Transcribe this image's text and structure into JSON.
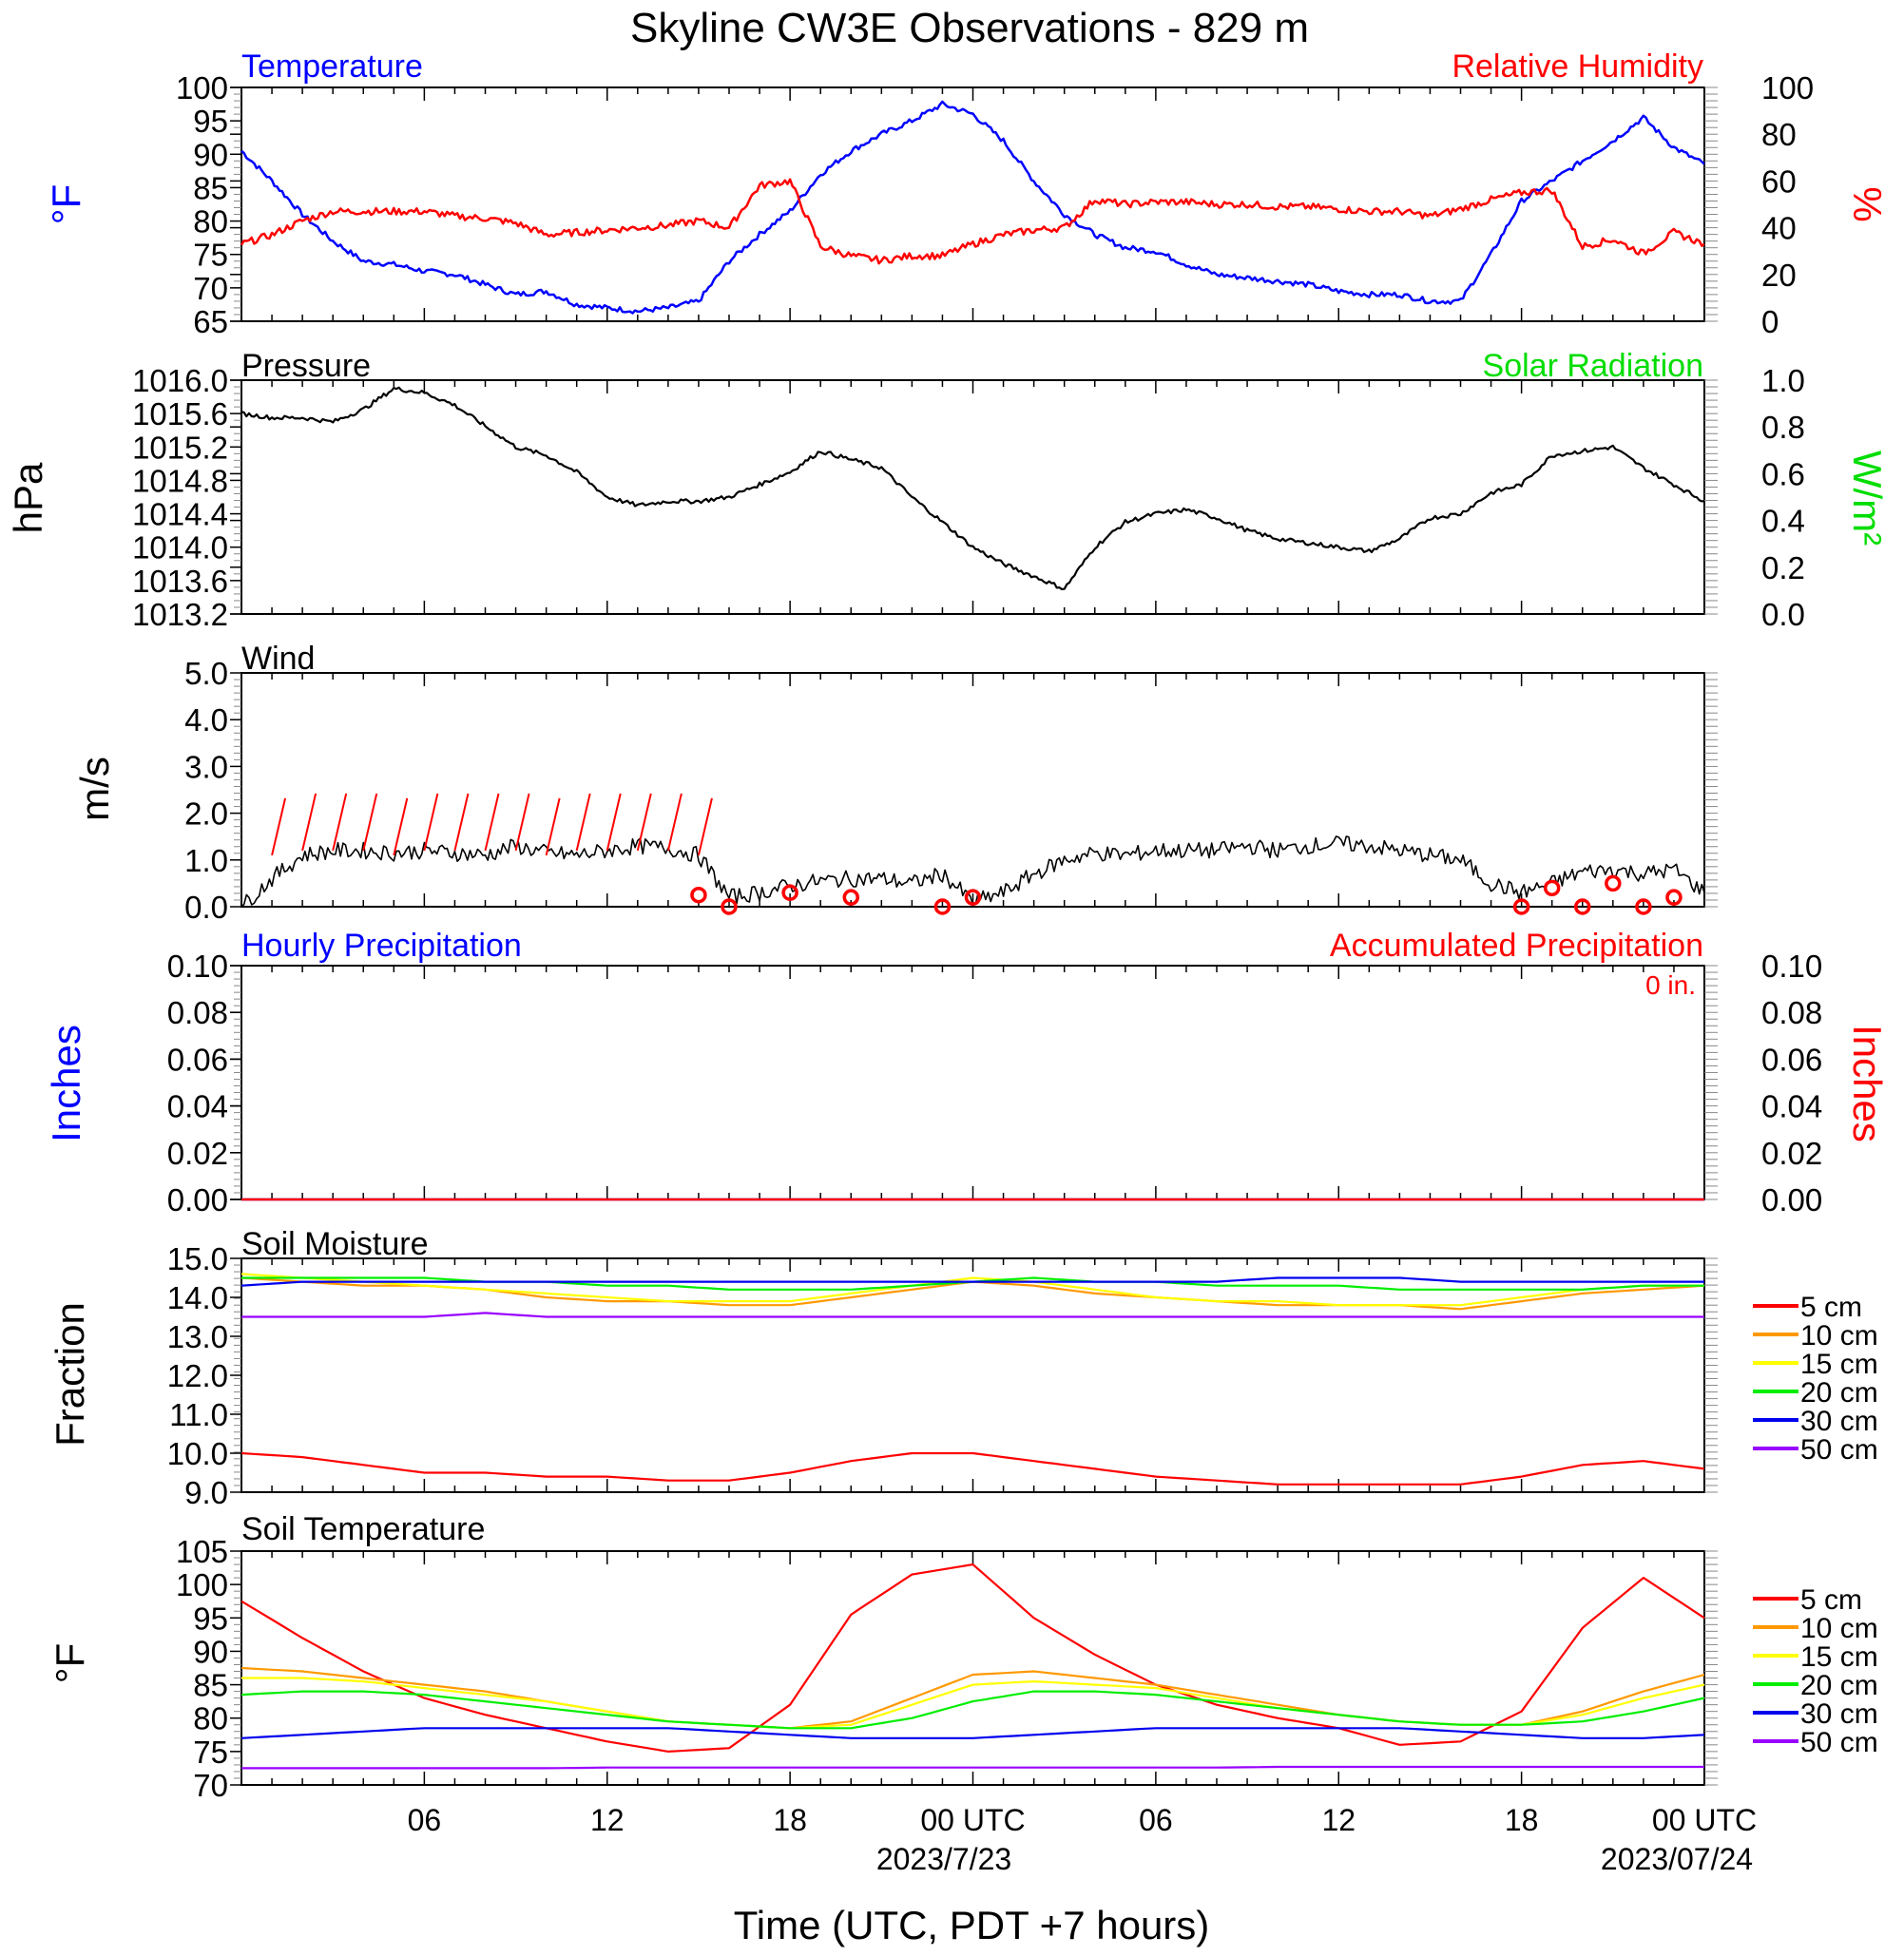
{
  "title": "Skyline CW3E Observations - 829 m",
  "xaxis": {
    "label": "Time (UTC, PDT +7 hours)",
    "tick_labels": [
      "06",
      "12",
      "18",
      "00 UTC",
      "06",
      "12",
      "18",
      "00 UTC"
    ],
    "date_labels": [
      "2023/7/23",
      "2023/07/24"
    ]
  },
  "panel_temp": {
    "left_title": "Temperature",
    "right_title": "Relative Humidity",
    "left_unit": "°F",
    "right_unit": "%",
    "left_ticks": [
      "100",
      "95",
      "90",
      "85",
      "80",
      "75",
      "70",
      "65"
    ],
    "right_ticks": [
      "100",
      "80",
      "60",
      "40",
      "20",
      "0"
    ]
  },
  "panel_pres": {
    "left_title": "Pressure",
    "right_title": "Solar Radiation",
    "left_unit": "hPa",
    "right_unit": "W/m²",
    "left_ticks": [
      "1016.0",
      "1015.6",
      "1015.2",
      "1014.8",
      "1014.4",
      "1014.0",
      "1013.6",
      "1013.2"
    ],
    "right_ticks": [
      "1.0",
      "0.8",
      "0.6",
      "0.4",
      "0.2",
      "0.0"
    ]
  },
  "panel_wind": {
    "left_title": "Wind",
    "left_unit": "m/s",
    "left_ticks": [
      "5.0",
      "4.0",
      "3.0",
      "2.0",
      "1.0",
      "0.0"
    ]
  },
  "panel_precip": {
    "left_title": "Hourly Precipitation",
    "right_title": "Accumulated Precipitation",
    "total_label": "0 in.",
    "left_unit": "Inches",
    "right_unit": "Inches",
    "left_ticks": [
      "0.10",
      "0.08",
      "0.06",
      "0.04",
      "0.02",
      "0.00"
    ],
    "right_ticks": [
      "0.10",
      "0.08",
      "0.06",
      "0.04",
      "0.02",
      "0.00"
    ]
  },
  "panel_soilm": {
    "left_title": "Soil Moisture",
    "left_unit": "Fraction",
    "left_ticks": [
      "15.0",
      "14.0",
      "13.0",
      "12.0",
      "11.0",
      "10.0",
      "9.0"
    ],
    "legend": [
      "5 cm",
      "10 cm",
      "15 cm",
      "20 cm",
      "30 cm",
      "50 cm"
    ]
  },
  "panel_soilt": {
    "left_title": "Soil Temperature",
    "left_unit": "°F",
    "left_ticks": [
      "105",
      "100",
      "95",
      "90",
      "85",
      "80",
      "75",
      "70"
    ],
    "legend": [
      "5 cm",
      "10 cm",
      "15 cm",
      "20 cm",
      "30 cm",
      "50 cm"
    ]
  },
  "colors": {
    "temperature": "#0000ff",
    "rh": "#ff0000",
    "pressure": "#000000",
    "solar": "#00dd00",
    "wind": "#000000",
    "barb": "#ff0000",
    "hourly_precip": "#0000ff",
    "accum_precip": "#ff0000",
    "5cm": "#ff0000",
    "10cm": "#ff9900",
    "15cm": "#ffff00",
    "20cm": "#00ee00",
    "30cm": "#0000ee",
    "50cm": "#9900ff"
  },
  "chart_data": [
    {
      "type": "line",
      "title": "Temperature",
      "xlabel": "Time (UTC, PDT +7 hours)",
      "ylabel": "°F",
      "ylim": [
        65,
        100
      ],
      "x_hours": [
        0,
        1,
        2,
        3,
        4,
        5,
        6,
        7,
        8,
        9,
        10,
        11,
        12,
        13,
        14,
        15,
        16,
        17,
        18,
        19,
        20,
        21,
        22,
        23,
        24,
        25,
        26,
        27,
        28,
        29,
        30,
        31,
        32,
        33,
        34,
        35,
        36,
        37,
        38,
        39,
        40,
        41,
        42,
        43,
        44,
        45,
        46,
        47,
        48
      ],
      "series": [
        {
          "name": "Temperature",
          "axis": "left",
          "values": [
            90.5,
            86,
            81,
            77,
            74,
            73.5,
            72.5,
            72,
            70.5,
            69,
            69.5,
            67.5,
            67,
            66.5,
            67,
            68,
            74,
            78,
            81.5,
            87,
            90.5,
            93,
            95,
            97.5,
            96,
            92,
            86,
            81,
            78,
            76,
            75.5,
            73.5,
            72,
            71.5,
            71,
            70.5,
            69.5,
            69,
            69,
            68,
            68,
            75,
            83,
            86,
            89,
            92,
            95.5,
            91,
            88.5
          ]
        }
      ]
    },
    {
      "type": "line",
      "title": "Relative Humidity",
      "ylabel": "%",
      "ylim": [
        0,
        100
      ],
      "x_hours": [
        0,
        1,
        2,
        3,
        4,
        5,
        6,
        7,
        8,
        9,
        10,
        11,
        12,
        13,
        14,
        15,
        16,
        17,
        18,
        19,
        20,
        21,
        22,
        23,
        24,
        25,
        26,
        27,
        28,
        29,
        30,
        31,
        32,
        33,
        34,
        35,
        36,
        37,
        38,
        39,
        40,
        41,
        42,
        43,
        44,
        45,
        46,
        47,
        48
      ],
      "series": [
        {
          "name": "Relative Humidity",
          "axis": "right",
          "values": [
            33,
            37,
            43,
            47,
            47,
            47,
            47,
            45,
            44,
            42,
            37,
            38,
            39,
            40,
            41,
            43,
            40,
            58,
            60,
            32,
            28,
            26,
            28,
            28,
            33,
            37,
            39,
            40,
            52,
            50,
            51,
            51,
            50,
            50,
            49,
            49,
            48,
            47,
            47,
            45,
            48,
            52,
            55,
            56,
            32,
            35,
            29,
            38,
            33
          ]
        }
      ]
    },
    {
      "type": "line",
      "title": "Pressure",
      "ylabel": "hPa",
      "ylim": [
        1013.2,
        1016.0
      ],
      "x_hours": [
        0,
        1,
        2,
        3,
        4,
        5,
        6,
        7,
        8,
        9,
        10,
        11,
        12,
        13,
        14,
        15,
        16,
        17,
        18,
        19,
        20,
        21,
        22,
        23,
        24,
        25,
        26,
        27,
        28,
        29,
        30,
        31,
        32,
        33,
        34,
        35,
        36,
        37,
        38,
        39,
        40,
        41,
        42,
        43,
        44,
        45,
        46,
        47,
        48
      ],
      "series": [
        {
          "name": "Pressure",
          "axis": "left",
          "values": [
            1015.6,
            1015.55,
            1015.55,
            1015.5,
            1015.65,
            1015.9,
            1015.85,
            1015.7,
            1015.45,
            1015.2,
            1015.1,
            1014.9,
            1014.6,
            1014.5,
            1014.55,
            1014.55,
            1014.6,
            1014.75,
            1014.9,
            1015.15,
            1015.05,
            1014.95,
            1014.6,
            1014.3,
            1014.0,
            1013.8,
            1013.65,
            1013.5,
            1014.0,
            1014.3,
            1014.4,
            1014.45,
            1014.35,
            1014.2,
            1014.1,
            1014.05,
            1014.0,
            1013.95,
            1014.1,
            1014.35,
            1014.4,
            1014.65,
            1014.75,
            1015.1,
            1015.15,
            1015.2,
            1014.95,
            1014.75,
            1014.55
          ]
        }
      ]
    },
    {
      "type": "line",
      "title": "Solar Radiation",
      "ylabel": "W/m²",
      "ylim": [
        0.0,
        1.0
      ],
      "series": []
    },
    {
      "type": "line",
      "title": "Wind",
      "ylabel": "m/s",
      "ylim": [
        0.0,
        5.0
      ],
      "x_hours": [
        0,
        1,
        2,
        3,
        4,
        5,
        6,
        7,
        8,
        9,
        10,
        11,
        12,
        13,
        14,
        15,
        16,
        17,
        18,
        19,
        20,
        21,
        22,
        23,
        24,
        25,
        26,
        27,
        28,
        29,
        30,
        31,
        32,
        33,
        34,
        35,
        36,
        37,
        38,
        39,
        40,
        41,
        42,
        43,
        44,
        45,
        46,
        47,
        48
      ],
      "series": [
        {
          "name": "Wind",
          "values": [
            0.0,
            0.6,
            1.1,
            1.2,
            1.2,
            1.15,
            1.2,
            1.15,
            1.1,
            1.3,
            1.15,
            1.1,
            1.2,
            1.3,
            1.25,
            1.1,
            0.2,
            0.3,
            0.45,
            0.55,
            0.6,
            0.6,
            0.5,
            0.7,
            0.1,
            0.3,
            0.7,
            1.0,
            1.15,
            1.1,
            1.2,
            1.2,
            1.2,
            1.3,
            1.2,
            1.3,
            1.35,
            1.3,
            1.2,
            1.1,
            1.0,
            0.5,
            0.3,
            0.5,
            0.75,
            0.8,
            0.7,
            0.8,
            0.3
          ]
        }
      ]
    },
    {
      "type": "line",
      "title": "Hourly Precipitation",
      "ylabel": "Inches",
      "ylim": [
        0.0,
        0.1
      ],
      "x_hours": [
        0,
        48
      ],
      "series": [
        {
          "name": "Hourly Precipitation",
          "values": [
            0.0,
            0.0
          ]
        },
        {
          "name": "Accumulated Precipitation",
          "values": [
            0.0,
            0.0
          ]
        }
      ]
    },
    {
      "type": "line",
      "title": "Soil Moisture",
      "ylabel": "Fraction",
      "ylim": [
        9.0,
        15.0
      ],
      "x_hours": [
        0,
        2,
        4,
        6,
        8,
        10,
        12,
        14,
        16,
        18,
        20,
        22,
        24,
        26,
        28,
        30,
        32,
        34,
        36,
        38,
        40,
        42,
        44,
        46,
        48
      ],
      "series": [
        {
          "name": "5 cm",
          "values": [
            10.0,
            9.9,
            9.7,
            9.5,
            9.5,
            9.4,
            9.4,
            9.3,
            9.3,
            9.5,
            9.8,
            10.0,
            10.0,
            9.8,
            9.6,
            9.4,
            9.3,
            9.2,
            9.2,
            9.2,
            9.2,
            9.4,
            9.7,
            9.8,
            9.6
          ]
        },
        {
          "name": "10 cm",
          "values": [
            14.5,
            14.4,
            14.3,
            14.3,
            14.2,
            14.0,
            13.9,
            13.9,
            13.8,
            13.8,
            14.0,
            14.2,
            14.4,
            14.3,
            14.1,
            14.0,
            13.9,
            13.8,
            13.8,
            13.8,
            13.7,
            13.9,
            14.1,
            14.2,
            14.3
          ]
        },
        {
          "name": "15 cm",
          "values": [
            14.6,
            14.5,
            14.4,
            14.3,
            14.2,
            14.1,
            14.0,
            13.9,
            13.9,
            13.9,
            14.1,
            14.3,
            14.5,
            14.4,
            14.2,
            14.0,
            13.9,
            13.9,
            13.8,
            13.8,
            13.8,
            14.0,
            14.2,
            14.3,
            14.3
          ]
        },
        {
          "name": "20 cm",
          "values": [
            14.5,
            14.5,
            14.5,
            14.5,
            14.4,
            14.4,
            14.3,
            14.3,
            14.2,
            14.2,
            14.2,
            14.3,
            14.4,
            14.5,
            14.4,
            14.4,
            14.3,
            14.3,
            14.3,
            14.2,
            14.2,
            14.2,
            14.2,
            14.3,
            14.3
          ]
        },
        {
          "name": "30 cm",
          "values": [
            14.3,
            14.4,
            14.4,
            14.4,
            14.4,
            14.4,
            14.4,
            14.4,
            14.4,
            14.4,
            14.4,
            14.4,
            14.4,
            14.4,
            14.4,
            14.4,
            14.4,
            14.5,
            14.5,
            14.5,
            14.4,
            14.4,
            14.4,
            14.4,
            14.4
          ]
        },
        {
          "name": "50 cm",
          "values": [
            13.5,
            13.5,
            13.5,
            13.5,
            13.6,
            13.5,
            13.5,
            13.5,
            13.5,
            13.5,
            13.5,
            13.5,
            13.5,
            13.5,
            13.5,
            13.5,
            13.5,
            13.5,
            13.5,
            13.5,
            13.5,
            13.5,
            13.5,
            13.5,
            13.5
          ]
        }
      ]
    },
    {
      "type": "line",
      "title": "Soil Temperature",
      "ylabel": "°F",
      "ylim": [
        70,
        105
      ],
      "x_hours": [
        0,
        2,
        4,
        6,
        8,
        10,
        12,
        14,
        16,
        18,
        20,
        22,
        24,
        26,
        28,
        30,
        32,
        34,
        36,
        38,
        40,
        42,
        44,
        46,
        48
      ],
      "series": [
        {
          "name": "5 cm",
          "values": [
            97.5,
            92,
            87,
            83,
            80.5,
            78.5,
            76.5,
            75,
            75.5,
            82,
            95.5,
            101.5,
            103,
            95,
            89.5,
            85,
            82,
            80,
            78.5,
            76,
            76.5,
            81,
            93.5,
            101,
            95
          ]
        },
        {
          "name": "10 cm",
          "values": [
            87.5,
            87,
            86,
            85,
            84,
            82.5,
            81,
            79.5,
            79,
            78.5,
            79.5,
            83,
            86.5,
            87,
            86,
            85,
            83.5,
            82,
            80.5,
            79.5,
            79,
            79,
            81,
            84,
            86.5
          ]
        },
        {
          "name": "15 cm",
          "values": [
            86,
            86,
            85.5,
            84.5,
            83.5,
            82.5,
            81,
            79.5,
            79,
            78.5,
            79,
            82,
            85,
            85.5,
            85,
            84.5,
            83,
            81.5,
            80.5,
            79.5,
            79,
            79,
            80.5,
            83,
            85
          ]
        },
        {
          "name": "20 cm",
          "values": [
            83.5,
            84,
            84,
            83.5,
            82.5,
            81.5,
            80.5,
            79.5,
            79,
            78.5,
            78.5,
            80,
            82.5,
            84,
            84,
            83.5,
            82.5,
            81.5,
            80.5,
            79.5,
            79,
            79,
            79.5,
            81,
            83
          ]
        },
        {
          "name": "30 cm",
          "values": [
            77,
            77.5,
            78,
            78.5,
            78.5,
            78.5,
            78.5,
            78.5,
            78,
            77.5,
            77,
            77,
            77,
            77.5,
            78,
            78.5,
            78.5,
            78.5,
            78.5,
            78.5,
            78,
            77.5,
            77,
            77,
            77.5
          ]
        },
        {
          "name": "50 cm",
          "values": [
            72.5,
            72.5,
            72.5,
            72.5,
            72.5,
            72.5,
            72.6,
            72.6,
            72.6,
            72.6,
            72.6,
            72.6,
            72.6,
            72.6,
            72.6,
            72.6,
            72.6,
            72.7,
            72.7,
            72.7,
            72.7,
            72.7,
            72.7,
            72.7,
            72.7
          ]
        }
      ]
    },
    {
      "type": "scatter",
      "title": "Wind barbs",
      "ylabel": "m/s",
      "series": [
        {
          "name": "barbs",
          "x_hours": [
            1,
            2,
            3,
            4,
            5,
            6,
            7,
            8,
            9,
            10,
            11,
            12,
            13,
            14,
            15
          ],
          "values": [
            1.1,
            1.2,
            1.2,
            1.2,
            1.1,
            1.2,
            1.2,
            1.2,
            1.2,
            1.1,
            1.2,
            1.2,
            1.2,
            1.2,
            1.1
          ]
        },
        {
          "name": "calm",
          "x_hours": [
            15,
            16,
            18,
            20,
            23,
            24,
            42,
            43,
            44,
            45,
            46,
            47
          ],
          "values": [
            0.25,
            0.0,
            0.3,
            0.2,
            0.0,
            0.2,
            0.0,
            0.4,
            0.0,
            0.5,
            0.0,
            0.2
          ]
        }
      ]
    }
  ]
}
